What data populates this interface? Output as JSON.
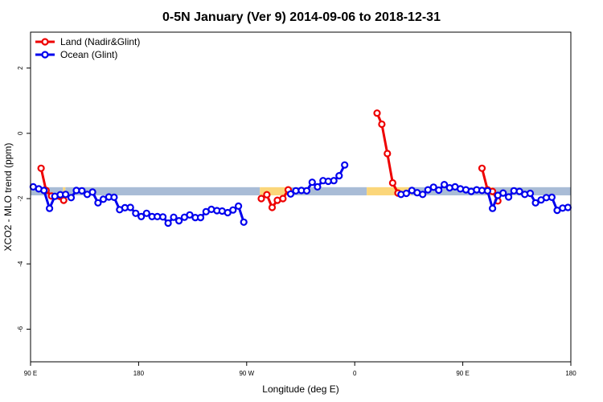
{
  "chart_data": {
    "type": "line",
    "title": "0-5N January (Ver 9)   2014-09-06 to 2018-12-31",
    "xlabel": "Longitude (deg E)",
    "ylabel": "XCO2 - MLO trend (ppm)",
    "xlim": [
      90,
      540
    ],
    "ylim": [
      -7,
      3.1
    ],
    "x_ticks": [
      {
        "value": 90,
        "label": "90 E"
      },
      {
        "value": 180,
        "label": "180"
      },
      {
        "value": 270,
        "label": "90 W"
      },
      {
        "value": 360,
        "label": "0"
      },
      {
        "value": 450,
        "label": "90 E"
      },
      {
        "value": 540,
        "label": "180"
      }
    ],
    "y_ticks": [
      {
        "value": 2,
        "label": "2"
      },
      {
        "value": 0,
        "label": "0"
      },
      {
        "value": -2,
        "label": "-2"
      },
      {
        "value": -4,
        "label": "-4"
      },
      {
        "value": -6,
        "label": "-6"
      }
    ],
    "grid": false,
    "legend_position": "top-left",
    "background_band": {
      "y_range": [
        -1.9,
        -1.65
      ],
      "segments": [
        {
          "x_start": 90,
          "x_end": 117,
          "color": "#a9bcd6"
        },
        {
          "x_start": 117,
          "x_end": 119,
          "color": "#fbd67a"
        },
        {
          "x_start": 119,
          "x_end": 281,
          "color": "#a9bcd6"
        },
        {
          "x_start": 281,
          "x_end": 307,
          "color": "#fbd67a"
        },
        {
          "x_start": 307,
          "x_end": 370,
          "color": "#a9bcd6"
        },
        {
          "x_start": 370,
          "x_end": 407,
          "color": "#fbd67a"
        },
        {
          "x_start": 407,
          "x_end": 470,
          "color": "#a9bcd6"
        },
        {
          "x_start": 470,
          "x_end": 475,
          "color": "#fbd67a"
        },
        {
          "x_start": 475,
          "x_end": 540,
          "color": "#a9bcd6"
        }
      ]
    },
    "series": [
      {
        "name": "Land (Nadir&Glint)",
        "color": "#ee0000",
        "segments": [
          [
            [
              98.8,
              -1.07
            ],
            [
              102.9,
              -1.75
            ],
            [
              107.5,
              -1.92
            ],
            [
              117.6,
              -2.05
            ]
          ],
          [
            [
              282.2,
              -2.0
            ],
            [
              286.8,
              -1.88
            ],
            [
              291.2,
              -2.27
            ],
            [
              295.6,
              -2.05
            ],
            [
              300.2,
              -2.0
            ],
            [
              304.6,
              -1.73
            ]
          ],
          [
            [
              378.6,
              0.62
            ],
            [
              382.6,
              0.28
            ],
            [
              387.2,
              -0.62
            ],
            [
              391.6,
              -1.52
            ],
            [
              396.0,
              -1.83
            ]
          ],
          [
            [
              466.0,
              -1.07
            ],
            [
              470.6,
              -1.73
            ],
            [
              474.8,
              -1.78
            ],
            [
              479.2,
              -2.07
            ]
          ]
        ]
      },
      {
        "name": "Ocean (Glint)",
        "color": "#0000ee",
        "segments": [
          [
            [
              92.2,
              -1.64
            ],
            [
              96.8,
              -1.7
            ],
            [
              101.2,
              -1.75
            ],
            [
              105.8,
              -2.3
            ],
            [
              110.2,
              -1.93
            ],
            [
              114.8,
              -1.88
            ],
            [
              119.2,
              -1.87
            ],
            [
              123.8,
              -1.97
            ],
            [
              128.2,
              -1.75
            ],
            [
              132.8,
              -1.76
            ],
            [
              137.2,
              -1.87
            ],
            [
              141.6,
              -1.8
            ],
            [
              146.2,
              -2.13
            ],
            [
              150.6,
              -2.02
            ],
            [
              155.2,
              -1.95
            ],
            [
              159.6,
              -1.96
            ],
            [
              164.2,
              -2.34
            ],
            [
              168.6,
              -2.28
            ],
            [
              173.2,
              -2.27
            ],
            [
              177.6,
              -2.45
            ],
            [
              182.2,
              -2.55
            ],
            [
              186.6,
              -2.45
            ],
            [
              191.2,
              -2.55
            ],
            [
              195.6,
              -2.55
            ],
            [
              200.2,
              -2.56
            ],
            [
              204.6,
              -2.75
            ],
            [
              209.2,
              -2.57
            ],
            [
              213.6,
              -2.68
            ],
            [
              218.2,
              -2.57
            ],
            [
              222.6,
              -2.5
            ],
            [
              227.2,
              -2.58
            ],
            [
              231.6,
              -2.58
            ],
            [
              236.2,
              -2.4
            ],
            [
              240.6,
              -2.33
            ],
            [
              245.2,
              -2.37
            ],
            [
              249.6,
              -2.38
            ],
            [
              254.2,
              -2.43
            ],
            [
              258.6,
              -2.35
            ],
            [
              263.2,
              -2.23
            ],
            [
              267.6,
              -2.72
            ]
          ],
          [
            [
              306.6,
              -1.86
            ],
            [
              311.0,
              -1.76
            ],
            [
              315.6,
              -1.75
            ],
            [
              320.0,
              -1.76
            ],
            [
              324.6,
              -1.5
            ],
            [
              329.0,
              -1.64
            ],
            [
              333.6,
              -1.45
            ],
            [
              338.0,
              -1.47
            ],
            [
              342.6,
              -1.45
            ],
            [
              347.0,
              -1.3
            ],
            [
              351.6,
              -0.97
            ]
          ],
          [
            [
              398.6,
              -1.87
            ],
            [
              403.0,
              -1.84
            ],
            [
              407.6,
              -1.75
            ],
            [
              412.0,
              -1.82
            ],
            [
              416.6,
              -1.87
            ],
            [
              421.0,
              -1.73
            ],
            [
              425.6,
              -1.65
            ],
            [
              430.0,
              -1.74
            ],
            [
              434.6,
              -1.57
            ],
            [
              439.0,
              -1.67
            ],
            [
              443.6,
              -1.64
            ],
            [
              448.0,
              -1.7
            ],
            [
              452.6,
              -1.73
            ],
            [
              457.0,
              -1.78
            ],
            [
              461.6,
              -1.73
            ],
            [
              466.0,
              -1.75
            ],
            [
              470.6,
              -1.76
            ],
            [
              474.8,
              -2.3
            ],
            [
              479.2,
              -1.9
            ],
            [
              483.6,
              -1.83
            ],
            [
              488.2,
              -1.95
            ],
            [
              492.6,
              -1.76
            ],
            [
              497.2,
              -1.78
            ],
            [
              501.6,
              -1.87
            ],
            [
              506.2,
              -1.84
            ],
            [
              510.6,
              -2.13
            ],
            [
              515.2,
              -2.04
            ],
            [
              519.6,
              -1.97
            ],
            [
              524.2,
              -1.96
            ],
            [
              528.6,
              -2.36
            ],
            [
              533.2,
              -2.29
            ],
            [
              537.6,
              -2.27
            ]
          ]
        ]
      }
    ]
  }
}
